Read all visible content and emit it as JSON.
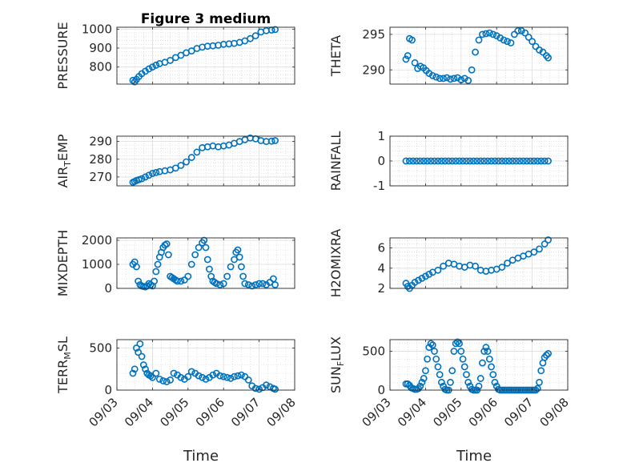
{
  "chart_data": [
    {
      "type": "scatter",
      "title": "Figure 3 medium",
      "ylabel": "PRESSURE",
      "ylim": [
        710,
        1010
      ],
      "yticks": [
        800,
        900,
        1000
      ],
      "grid": true,
      "x": [
        3.45,
        3.5,
        3.55,
        3.62,
        3.7,
        3.8,
        3.9,
        4.0,
        4.1,
        4.2,
        4.35,
        4.5,
        4.65,
        4.8,
        4.95,
        5.1,
        5.25,
        5.4,
        5.55,
        5.7,
        5.85,
        6.0,
        6.15,
        6.3,
        6.45,
        6.6,
        6.75,
        6.9,
        7.05,
        7.2,
        7.35,
        7.45
      ],
      "y": [
        730,
        722,
        735,
        750,
        765,
        778,
        790,
        800,
        810,
        818,
        825,
        835,
        850,
        862,
        875,
        885,
        898,
        905,
        910,
        912,
        915,
        920,
        922,
        925,
        930,
        938,
        950,
        965,
        985,
        992,
        995,
        998
      ],
      "xlim": [
        3,
        8
      ],
      "xticklabels": [],
      "color": "#0072BD"
    },
    {
      "type": "scatter",
      "ylabel": "THETA",
      "ylim": [
        288,
        296
      ],
      "yticks": [
        290,
        295
      ],
      "grid": true,
      "x": [
        3.45,
        3.5,
        3.55,
        3.62,
        3.7,
        3.78,
        3.86,
        3.94,
        4.02,
        4.1,
        4.2,
        4.3,
        4.4,
        4.5,
        4.6,
        4.7,
        4.8,
        4.9,
        5.0,
        5.1,
        5.2,
        5.3,
        5.4,
        5.5,
        5.6,
        5.7,
        5.8,
        5.9,
        6.0,
        6.1,
        6.2,
        6.3,
        6.4,
        6.5,
        6.6,
        6.7,
        6.8,
        6.9,
        7.0,
        7.1,
        7.2,
        7.3,
        7.4,
        7.45
      ],
      "y": [
        291.5,
        292.0,
        294.4,
        294.2,
        291.0,
        290.2,
        290.5,
        290.3,
        289.9,
        289.5,
        289.2,
        289.0,
        288.8,
        288.8,
        288.9,
        288.7,
        288.8,
        288.9,
        288.6,
        288.8,
        288.5,
        290.0,
        292.5,
        294.2,
        295.0,
        295.1,
        295.2,
        295.0,
        294.8,
        294.5,
        294.2,
        294.0,
        293.8,
        295.0,
        295.5,
        295.5,
        295.2,
        294.6,
        294.0,
        293.3,
        292.8,
        292.5,
        292.0,
        291.7
      ],
      "xlim": [
        3,
        8
      ],
      "xticklabels": [],
      "color": "#0072BD"
    },
    {
      "type": "scatter",
      "ylabel": "AIR_TEMP",
      "ylim": [
        265,
        293
      ],
      "yticks": [
        270,
        280,
        290
      ],
      "grid": true,
      "x": [
        3.45,
        3.5,
        3.55,
        3.62,
        3.7,
        3.8,
        3.9,
        4.0,
        4.1,
        4.2,
        4.35,
        4.5,
        4.65,
        4.8,
        4.95,
        5.1,
        5.25,
        5.4,
        5.55,
        5.7,
        5.85,
        6.0,
        6.15,
        6.3,
        6.45,
        6.6,
        6.75,
        6.9,
        7.05,
        7.2,
        7.35,
        7.45
      ],
      "y": [
        267.0,
        267.5,
        268.0,
        268.5,
        269.0,
        270.0,
        271.0,
        272.0,
        272.5,
        273.0,
        273.5,
        274.0,
        275.0,
        276.5,
        278.5,
        281.0,
        284.0,
        286.5,
        287.0,
        287.5,
        287.0,
        287.5,
        288.0,
        289.0,
        290.0,
        291.0,
        292.0,
        291.5,
        290.5,
        290.0,
        290.2,
        290.5
      ],
      "xlim": [
        3,
        8
      ],
      "xticklabels": [],
      "color": "#0072BD"
    },
    {
      "type": "scatter",
      "ylabel": "RAINFALL",
      "ylim": [
        -1,
        1
      ],
      "yticks": [
        -1,
        0,
        1
      ],
      "grid": true,
      "x": [
        3.45,
        3.55,
        3.65,
        3.75,
        3.85,
        3.95,
        4.05,
        4.15,
        4.25,
        4.35,
        4.45,
        4.55,
        4.65,
        4.75,
        4.85,
        4.95,
        5.05,
        5.15,
        5.25,
        5.35,
        5.45,
        5.55,
        5.65,
        5.75,
        5.85,
        5.95,
        6.05,
        6.15,
        6.25,
        6.35,
        6.45,
        6.55,
        6.65,
        6.75,
        6.85,
        6.95,
        7.05,
        7.15,
        7.25,
        7.35,
        7.45
      ],
      "y": [
        0,
        0,
        0,
        0,
        0,
        0,
        0,
        0,
        0,
        0,
        0,
        0,
        0,
        0,
        0,
        0,
        0,
        0,
        0,
        0,
        0,
        0,
        0,
        0,
        0,
        0,
        0,
        0,
        0,
        0,
        0,
        0,
        0,
        0,
        0,
        0,
        0,
        0,
        0,
        0,
        0
      ],
      "xlim": [
        3,
        8
      ],
      "xticklabels": [],
      "color": "#0072BD"
    },
    {
      "type": "scatter",
      "ylabel": "MIXDEPTH",
      "ylim": [
        0,
        2100
      ],
      "yticks": [
        0,
        1000,
        2000
      ],
      "grid": true,
      "x": [
        3.45,
        3.5,
        3.55,
        3.6,
        3.65,
        3.7,
        3.75,
        3.8,
        3.85,
        3.9,
        3.95,
        4.0,
        4.05,
        4.1,
        4.15,
        4.2,
        4.25,
        4.3,
        4.35,
        4.4,
        4.45,
        4.5,
        4.55,
        4.6,
        4.65,
        4.7,
        4.8,
        4.9,
        5.0,
        5.1,
        5.2,
        5.3,
        5.4,
        5.45,
        5.5,
        5.55,
        5.6,
        5.65,
        5.7,
        5.75,
        5.8,
        5.9,
        6.0,
        6.1,
        6.2,
        6.3,
        6.35,
        6.4,
        6.45,
        6.5,
        6.55,
        6.6,
        6.7,
        6.8,
        6.9,
        7.0,
        7.1,
        7.2,
        7.3,
        7.4,
        7.45
      ],
      "y": [
        1000,
        1100,
        900,
        300,
        150,
        100,
        80,
        60,
        100,
        200,
        150,
        100,
        300,
        700,
        1000,
        1300,
        1500,
        1700,
        1800,
        1850,
        1400,
        500,
        450,
        400,
        350,
        300,
        300,
        350,
        500,
        1000,
        1400,
        1700,
        1900,
        2000,
        1700,
        1200,
        800,
        500,
        300,
        250,
        200,
        150,
        200,
        500,
        900,
        1200,
        1500,
        1600,
        1300,
        900,
        500,
        200,
        150,
        100,
        150,
        200,
        200,
        150,
        250,
        400,
        150
      ],
      "xlim": [
        3,
        8
      ],
      "xticklabels": [],
      "color": "#0072BD"
    },
    {
      "type": "scatter",
      "ylabel": "H2OMIXRA",
      "ylim": [
        2,
        7
      ],
      "yticks": [
        2,
        4,
        6
      ],
      "grid": true,
      "x": [
        3.45,
        3.5,
        3.55,
        3.62,
        3.7,
        3.8,
        3.9,
        4.0,
        4.1,
        4.2,
        4.35,
        4.5,
        4.65,
        4.8,
        4.95,
        5.1,
        5.25,
        5.4,
        5.55,
        5.7,
        5.85,
        6.0,
        6.15,
        6.3,
        6.45,
        6.6,
        6.75,
        6.9,
        7.05,
        7.2,
        7.35,
        7.45
      ],
      "y": [
        2.5,
        2.2,
        2.0,
        2.3,
        2.6,
        2.8,
        3.0,
        3.2,
        3.4,
        3.6,
        3.8,
        4.2,
        4.5,
        4.4,
        4.2,
        4.1,
        4.3,
        4.2,
        3.8,
        3.7,
        3.8,
        3.9,
        4.1,
        4.5,
        4.8,
        5.0,
        5.2,
        5.4,
        5.6,
        5.9,
        6.4,
        6.8
      ],
      "xlim": [
        3,
        8
      ],
      "xticklabels": [],
      "color": "#0072BD"
    },
    {
      "type": "scatter",
      "ylabel": "TERR_MSL",
      "ylim": [
        0,
        600
      ],
      "yticks": [
        0,
        500
      ],
      "grid": true,
      "x": [
        3.45,
        3.5,
        3.55,
        3.6,
        3.65,
        3.7,
        3.75,
        3.8,
        3.85,
        3.9,
        3.95,
        4.0,
        4.1,
        4.2,
        4.3,
        4.4,
        4.5,
        4.6,
        4.7,
        4.8,
        4.9,
        5.0,
        5.1,
        5.2,
        5.3,
        5.4,
        5.5,
        5.6,
        5.7,
        5.8,
        5.9,
        6.0,
        6.1,
        6.2,
        6.3,
        6.4,
        6.5,
        6.6,
        6.7,
        6.8,
        6.9,
        7.0,
        7.1,
        7.2,
        7.3,
        7.4,
        7.45
      ],
      "y": [
        200,
        250,
        500,
        450,
        550,
        400,
        300,
        250,
        200,
        180,
        170,
        150,
        200,
        130,
        110,
        100,
        120,
        200,
        180,
        150,
        130,
        160,
        220,
        200,
        170,
        150,
        130,
        150,
        180,
        200,
        170,
        160,
        150,
        140,
        160,
        170,
        180,
        160,
        120,
        50,
        20,
        10,
        30,
        60,
        40,
        20,
        10
      ],
      "xlim": [
        3,
        8
      ],
      "xticks": [
        3,
        4,
        5,
        6,
        7,
        8
      ],
      "xticklabels": [
        "09/03",
        "09/04",
        "09/05",
        "09/06",
        "09/07",
        "09/08"
      ],
      "xlabel": "Time",
      "color": "#0072BD"
    },
    {
      "type": "scatter",
      "ylabel": "SUN_FLUX",
      "ylim": [
        0,
        650
      ],
      "yticks": [
        0,
        500
      ],
      "grid": true,
      "x": [
        3.45,
        3.5,
        3.55,
        3.6,
        3.65,
        3.7,
        3.75,
        3.8,
        3.85,
        3.9,
        3.95,
        4.0,
        4.05,
        4.1,
        4.15,
        4.2,
        4.25,
        4.3,
        4.35,
        4.4,
        4.45,
        4.5,
        4.55,
        4.6,
        4.65,
        4.7,
        4.75,
        4.8,
        4.85,
        4.9,
        4.95,
        5.0,
        5.05,
        5.1,
        5.15,
        5.2,
        5.25,
        5.3,
        5.35,
        5.4,
        5.45,
        5.5,
        5.55,
        5.6,
        5.65,
        5.7,
        5.75,
        5.8,
        5.85,
        5.9,
        5.95,
        6.0,
        6.05,
        6.1,
        6.15,
        6.2,
        6.25,
        6.3,
        6.35,
        6.4,
        6.45,
        6.5,
        6.55,
        6.6,
        6.65,
        6.7,
        6.75,
        6.8,
        6.85,
        6.9,
        6.95,
        7.0,
        7.05,
        7.1,
        7.15,
        7.2,
        7.25,
        7.3,
        7.35,
        7.4,
        7.45
      ],
      "y": [
        80,
        80,
        60,
        30,
        20,
        10,
        10,
        20,
        50,
        100,
        150,
        250,
        400,
        550,
        600,
        580,
        500,
        400,
        300,
        200,
        100,
        50,
        10,
        0,
        0,
        100,
        250,
        500,
        600,
        620,
        600,
        500,
        400,
        300,
        200,
        100,
        50,
        10,
        0,
        0,
        0,
        50,
        150,
        350,
        500,
        550,
        500,
        400,
        300,
        200,
        100,
        50,
        10,
        0,
        0,
        0,
        0,
        0,
        0,
        0,
        0,
        0,
        0,
        0,
        0,
        0,
        0,
        0,
        0,
        0,
        0,
        0,
        0,
        0,
        20,
        100,
        250,
        350,
        420,
        450,
        470
      ],
      "xlim": [
        3,
        8
      ],
      "xticks": [
        3,
        4,
        5,
        6,
        7,
        8
      ],
      "xticklabels": [
        "09/03",
        "09/04",
        "09/05",
        "09/06",
        "09/07",
        "09/08"
      ],
      "xlabel": "Time",
      "color": "#0072BD"
    }
  ]
}
